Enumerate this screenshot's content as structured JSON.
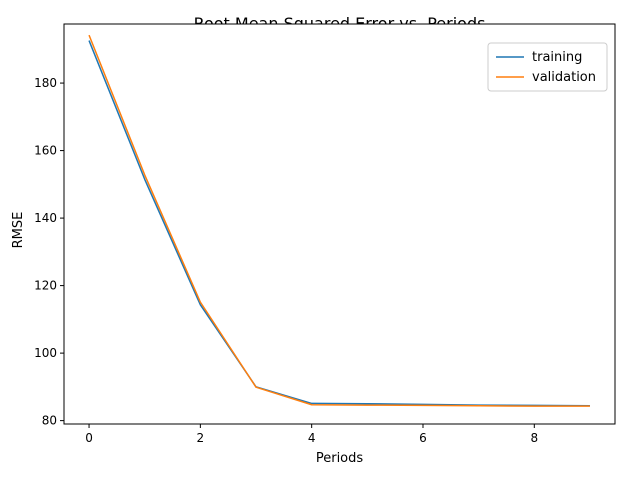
{
  "chart_data": {
    "type": "line",
    "title": "Root Mean Squared Error vs. Periods",
    "xlabel": "Periods",
    "ylabel": "RMSE",
    "x": [
      0,
      1,
      2,
      3,
      4,
      5,
      6,
      7,
      8,
      9
    ],
    "xlim": [
      -0.45,
      9.45
    ],
    "ylim": [
      79,
      197.5
    ],
    "xticks": [
      0,
      2,
      4,
      6,
      8
    ],
    "yticks": [
      80,
      100,
      120,
      140,
      160,
      180
    ],
    "grid": false,
    "legend_position": "top-right",
    "series": [
      {
        "name": "training",
        "color": "#1f77b4",
        "values": [
          192.6,
          151.5,
          114.3,
          90.0,
          85.1,
          85.0,
          84.8,
          84.6,
          84.5,
          84.4
        ]
      },
      {
        "name": "validation",
        "color": "#ff7f0e",
        "values": [
          194.2,
          152.8,
          115.1,
          89.9,
          84.7,
          84.6,
          84.5,
          84.4,
          84.3,
          84.3
        ]
      }
    ]
  }
}
